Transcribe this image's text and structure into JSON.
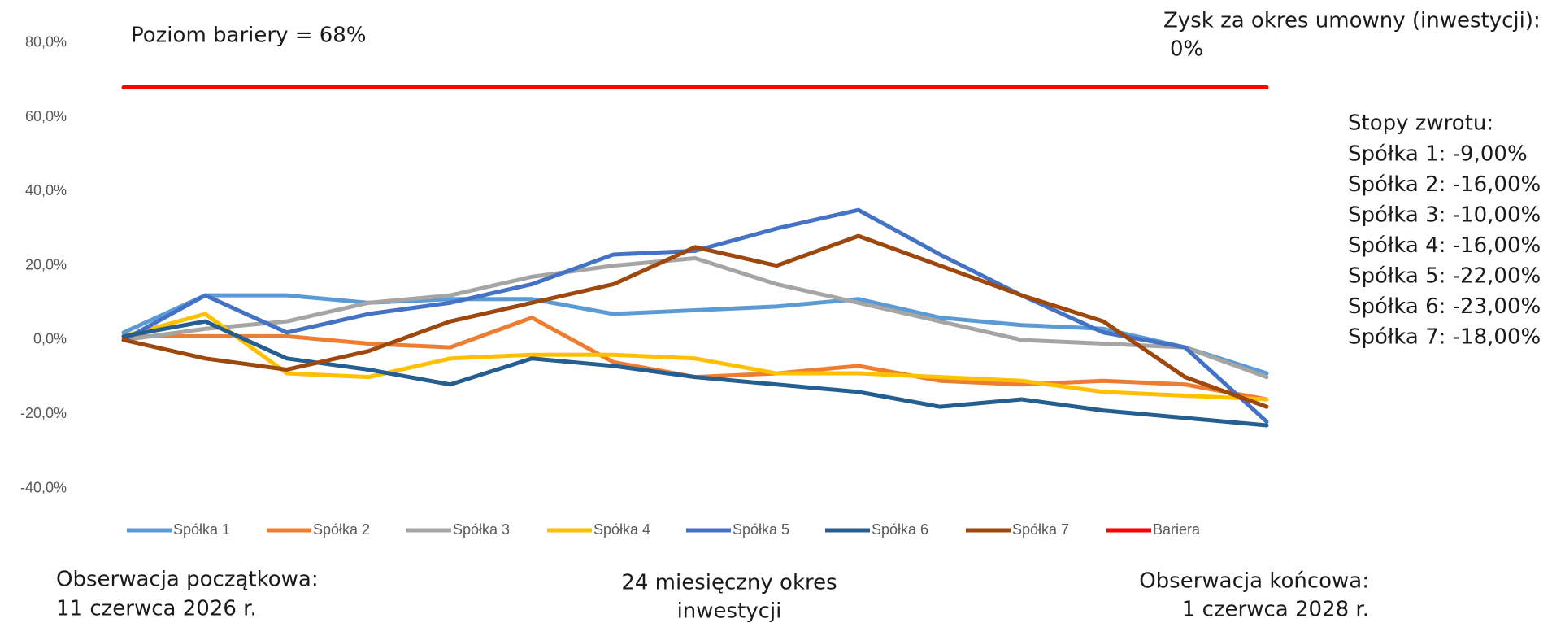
{
  "chart_data": {
    "type": "line",
    "categories": [
      null,
      null,
      null,
      null,
      null,
      null,
      null,
      null,
      null,
      null,
      null,
      null,
      null,
      null,
      null
    ],
    "ylim": [
      -40,
      80
    ],
    "yticks": [
      {
        "value": -40,
        "label": "-40,0%"
      },
      {
        "value": -20,
        "label": "-20,0%"
      },
      {
        "value": 0,
        "label": "0,0%"
      },
      {
        "value": 20,
        "label": "20,0%"
      },
      {
        "value": 40,
        "label": "40,0%"
      },
      {
        "value": 60,
        "label": "60,0%"
      },
      {
        "value": 80,
        "label": "80,0%"
      }
    ],
    "grid": false,
    "legend": "bottom",
    "series": [
      {
        "name": "Spółka 1",
        "color": "#5b9bd5",
        "values": [
          2,
          12,
          12,
          10,
          11,
          11,
          7,
          8,
          9,
          11,
          6,
          4,
          3,
          -2,
          -9
        ]
      },
      {
        "name": "Spółka 2",
        "color": "#ed7d31",
        "values": [
          1,
          1,
          1,
          -1,
          -2,
          6,
          -6,
          -10,
          -9,
          -7,
          -11,
          -12,
          -11,
          -12,
          -16
        ]
      },
      {
        "name": "Spółka 3",
        "color": "#a5a5a5",
        "values": [
          0,
          3,
          5,
          10,
          12,
          17,
          20,
          22,
          15,
          10,
          5,
          0,
          -1,
          -2,
          -10
        ]
      },
      {
        "name": "Spółka 4",
        "color": "#ffc000",
        "values": [
          1,
          7,
          -9,
          -10,
          -5,
          -4,
          -4,
          -5,
          -9,
          -9,
          -10,
          -11,
          -14,
          -15,
          -16
        ]
      },
      {
        "name": "Spółka 5",
        "color": "#4472c4",
        "values": [
          0,
          12,
          2,
          7,
          10,
          15,
          23,
          24,
          30,
          35,
          23,
          12,
          2,
          -2,
          -22
        ]
      },
      {
        "name": "Spółka 6",
        "color": "#255e91",
        "values": [
          1,
          5,
          -5,
          -8,
          -12,
          -5,
          -7,
          -10,
          -12,
          -14,
          -18,
          -16,
          -19,
          -21,
          -23
        ]
      },
      {
        "name": "Spółka 7",
        "color": "#9e480e",
        "values": [
          0,
          -5,
          -8,
          -3,
          5,
          10,
          15,
          25,
          20,
          28,
          20,
          12,
          5,
          -10,
          -18
        ]
      },
      {
        "name": "Bariera",
        "color": "#ff0000",
        "values": [
          68,
          68,
          68,
          68,
          68,
          68,
          68,
          68,
          68,
          68,
          68,
          68,
          68,
          68,
          68
        ]
      }
    ],
    "annotations": {
      "barrier": "Poziom bariery = 68%",
      "profit_title": "Zysk za okres umowny (inwestycji):",
      "profit_value": "0%",
      "returns_title": "Stopy zwrotu:",
      "returns": [
        "Spółka 1: -9,00%",
        "Spółka 2: -16,00%",
        "Spółka 3: -10,00%",
        "Spółka 4: -16,00%",
        "Spółka 5: -22,00%",
        "Spółka 6: -23,00%",
        "Spółka 7: -18,00%"
      ]
    },
    "footer": {
      "left": [
        "Obserwacja początkowa:",
        "11 czerwca 2026 r."
      ],
      "center": [
        "24 miesięczny okres",
        "inwestycji"
      ],
      "right": [
        "Obserwacja  końcowa:",
        "1 czerwca 2028 r."
      ]
    }
  }
}
